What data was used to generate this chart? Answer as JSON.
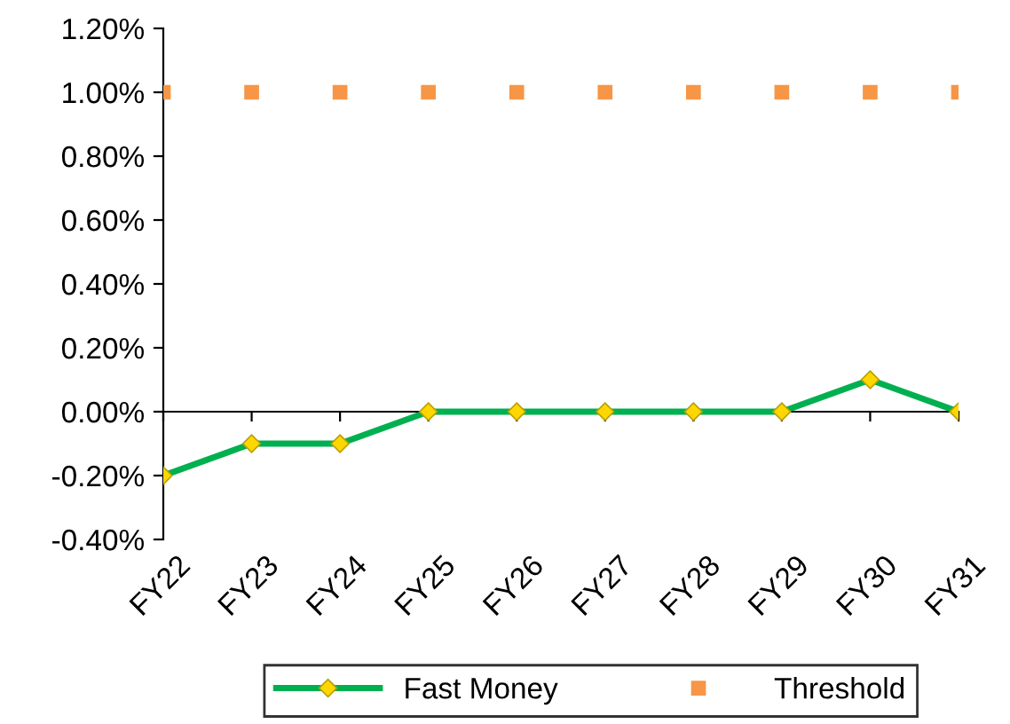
{
  "chart_data": {
    "type": "line",
    "categories": [
      "FY22",
      "FY23",
      "FY24",
      "FY25",
      "FY26",
      "FY27",
      "FY28",
      "FY29",
      "FY30",
      "FY31"
    ],
    "series": [
      {
        "name": "Fast Money",
        "color": "#00b050",
        "marker": "diamond",
        "values": [
          -0.2,
          -0.1,
          -0.1,
          0,
          0,
          0,
          0,
          0,
          0.1,
          0
        ]
      },
      {
        "name": "Threshold",
        "type": "scatter",
        "color": "#f79646",
        "marker": "square",
        "values": [
          1,
          1,
          1,
          1,
          1,
          1,
          1,
          1,
          1,
          1
        ]
      }
    ],
    "ylim": [
      -0.4,
      1.2
    ],
    "yticks": [
      {
        "value": -0.4,
        "label": "-0.40%"
      },
      {
        "value": -0.2,
        "label": "-0.20%"
      },
      {
        "value": 0,
        "label": "0.00%"
      },
      {
        "value": 0.2,
        "label": "0.20%"
      },
      {
        "value": 0.4,
        "label": "0.40%"
      },
      {
        "value": 0.6,
        "label": "0.60%"
      },
      {
        "value": 0.8,
        "label": "0.80%"
      },
      {
        "value": 1.0,
        "label": "1.00%"
      },
      {
        "value": 1.2,
        "label": "1.20%"
      }
    ],
    "legend": "bottom",
    "line_style": "solid"
  }
}
